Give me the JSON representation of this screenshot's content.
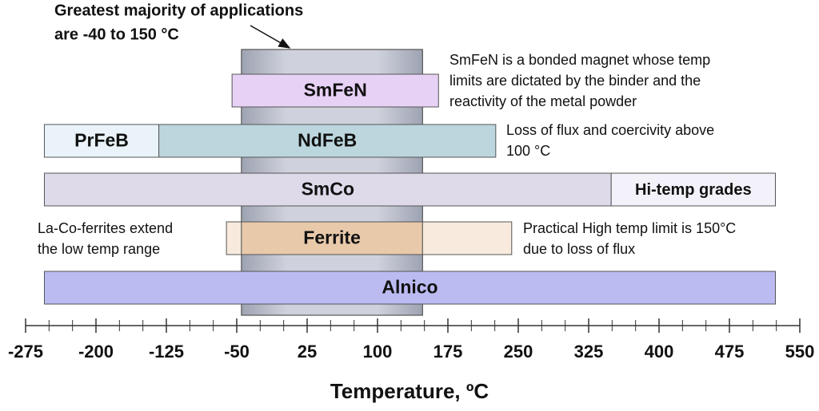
{
  "chart_data": {
    "type": "range",
    "xlabel": "Temperature, ºC",
    "xlim": [
      -275,
      550
    ],
    "xticks": [
      -275,
      -200,
      -125,
      -50,
      25,
      100,
      175,
      250,
      325,
      400,
      475,
      550
    ],
    "xticks_minor": [
      -275,
      -250,
      -225,
      -200,
      -175,
      -150,
      -125,
      -100,
      -75,
      -50,
      -25,
      0,
      25,
      50,
      75,
      100,
      125,
      150,
      175,
      200,
      225,
      250,
      275,
      300,
      325,
      350,
      375,
      400,
      425,
      450,
      475,
      500,
      525,
      550
    ],
    "band": {
      "start": -45,
      "end": 148,
      "color": "#b9bdc9"
    },
    "rows": [
      {
        "segments": [
          {
            "name": "SmFeN",
            "start": -55,
            "end": 165,
            "color": "#e7d2f6"
          }
        ]
      },
      {
        "segments": [
          {
            "name": "PrFeB",
            "start": -255,
            "end": -133,
            "color": "#e9f3f9"
          },
          {
            "name": "NdFeB",
            "start": -133,
            "end": 226,
            "color": "#bcd6de"
          }
        ]
      },
      {
        "segments": [
          {
            "name": "SmCo",
            "start": -255,
            "end": 349,
            "color": "#dedaea"
          },
          {
            "name": "Hi-temp grades",
            "start": 349,
            "end": 524,
            "color": "#f3f1f9"
          }
        ]
      },
      {
        "segments": [
          {
            "start": -61,
            "end": -45,
            "color": "#f8eadc"
          },
          {
            "name": "Ferrite",
            "start": -45,
            "end": 148,
            "color": "#e8c9aa"
          },
          {
            "start": 148,
            "end": 243,
            "color": "#f8eadc"
          }
        ]
      },
      {
        "segments": [
          {
            "name": "Alnico",
            "start": -255,
            "end": 524,
            "color": "#bbbbf2"
          }
        ]
      }
    ],
    "annotations": [
      {
        "lines": [
          "Greatest majority of applications",
          "are -40 to 150 °C"
        ]
      },
      {
        "lines": [
          "SmFeN is a bonded magnet whose temp",
          "limits are dictated by the binder and the",
          "reactivity of the metal powder"
        ]
      },
      {
        "lines": [
          "Loss of flux and coercivity above",
          "100 °C"
        ]
      },
      {
        "lines": [
          "La-Co-ferrites extend",
          "the low temp range"
        ]
      },
      {
        "lines": [
          "Practical High temp limit is 150°C",
          "due to loss of flux"
        ]
      }
    ]
  }
}
